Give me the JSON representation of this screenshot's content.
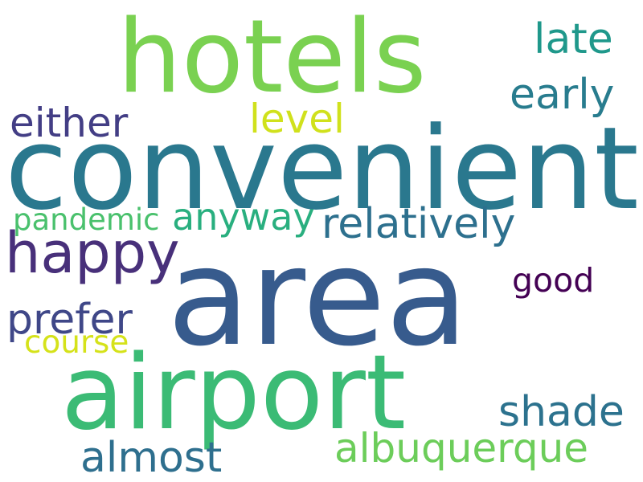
{
  "cloud": {
    "background": "#ffffff",
    "words": [
      {
        "key": "hotels",
        "text": "hotels",
        "color": "#7ad151"
      },
      {
        "key": "late",
        "text": "late",
        "color": "#1f988b"
      },
      {
        "key": "early",
        "text": "early",
        "color": "#287c8e"
      },
      {
        "key": "level",
        "text": "level",
        "color": "#d0e11c"
      },
      {
        "key": "either",
        "text": "either",
        "color": "#433e85"
      },
      {
        "key": "convenient",
        "text": "convenient",
        "color": "#2a788e"
      },
      {
        "key": "anyway",
        "text": "anyway",
        "color": "#29af7f"
      },
      {
        "key": "pandemic",
        "text": "pandemic",
        "color": "#4ac16d"
      },
      {
        "key": "relatively",
        "text": "relatively",
        "color": "#2d708e"
      },
      {
        "key": "happy",
        "text": "happy",
        "color": "#48307a"
      },
      {
        "key": "area",
        "text": "area",
        "color": "#375b8d"
      },
      {
        "key": "good",
        "text": "good",
        "color": "#440154"
      },
      {
        "key": "prefer",
        "text": "prefer",
        "color": "#3f4788"
      },
      {
        "key": "course",
        "text": "course",
        "color": "#d5e21a"
      },
      {
        "key": "airport",
        "text": "airport",
        "color": "#3bbb75"
      },
      {
        "key": "shade",
        "text": "shade",
        "color": "#2c728e"
      },
      {
        "key": "albuquerque",
        "text": "albuquerque",
        "color": "#6ccd5a"
      },
      {
        "key": "almost",
        "text": "almost",
        "color": "#2e6f8e"
      }
    ]
  }
}
